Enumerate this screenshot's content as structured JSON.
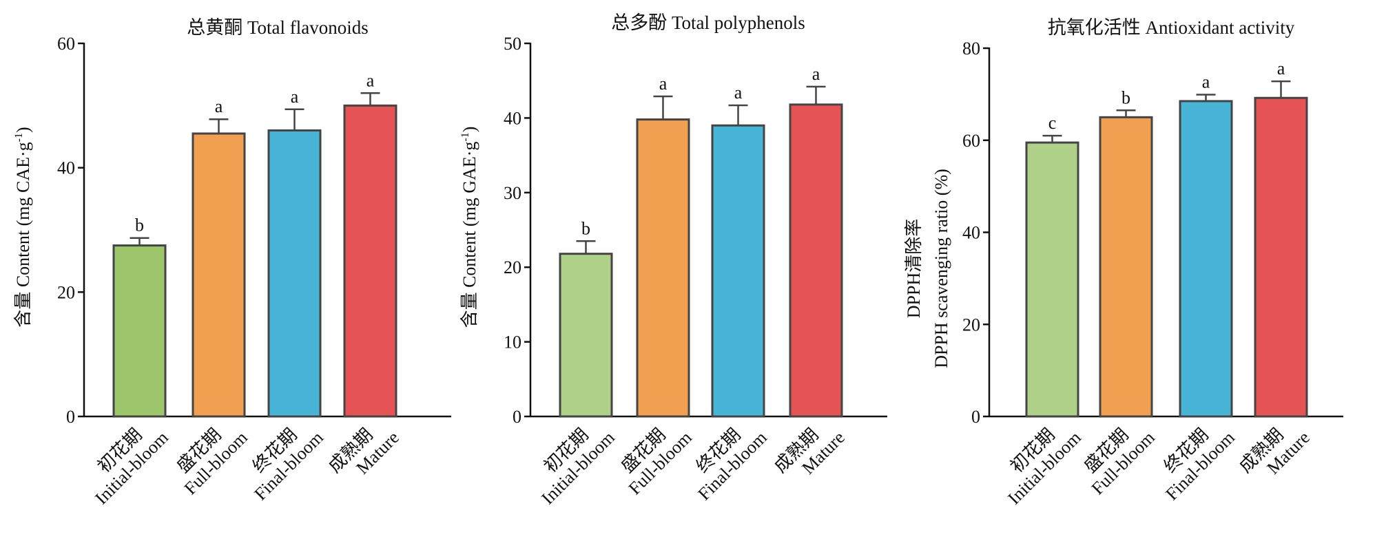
{
  "chart_data": [
    {
      "type": "bar",
      "title": "总黄酮 Total flavonoids",
      "ylabel": "含量 Content (mg CAE·g",
      "ylabel_sup": "-1",
      "ylabel_close": ")",
      "ylim": [
        0,
        60
      ],
      "yticks": [
        0,
        20,
        40,
        60
      ],
      "categories": [
        {
          "cn": "初花期",
          "en": "Initial-bloom"
        },
        {
          "cn": "盛花期",
          "en": "Full-bloom"
        },
        {
          "cn": "终花期",
          "en": "Final-bloom"
        },
        {
          "cn": "成熟期",
          "en": "Mature"
        }
      ],
      "values": [
        27.5,
        45.5,
        46.0,
        50.0
      ],
      "errors": [
        1.2,
        2.3,
        3.4,
        2.0
      ],
      "significance": [
        "b",
        "a",
        "a",
        "a"
      ],
      "colors": [
        "#9dc56a",
        "#f0a050",
        "#48b4d8",
        "#e65354"
      ]
    },
    {
      "type": "bar",
      "title": "总多酚 Total  polyphenols",
      "ylabel": "含量 Content (mg GAE·g",
      "ylabel_sup": "-1",
      "ylabel_close": ")",
      "ylim": [
        0,
        50
      ],
      "yticks": [
        0,
        10,
        20,
        30,
        40,
        50
      ],
      "categories": [
        {
          "cn": "初花期",
          "en": "Initial-bloom"
        },
        {
          "cn": "盛花期",
          "en": "Full-bloom"
        },
        {
          "cn": "终花期",
          "en": "Final-bloom"
        },
        {
          "cn": "成熟期",
          "en": "Mature"
        }
      ],
      "values": [
        21.8,
        39.8,
        39.0,
        41.8
      ],
      "errors": [
        1.7,
        3.1,
        2.7,
        2.4
      ],
      "significance": [
        "b",
        "a",
        "a",
        "a"
      ],
      "colors": [
        "#afd089",
        "#f0a050",
        "#48b4d8",
        "#e65354"
      ]
    },
    {
      "type": "bar",
      "title": "抗氧化活性 Antioxidant activity",
      "ylabel_line1": "DPPH清除率",
      "ylabel_line2": "DPPH scavenging ratio (%)",
      "ylim": [
        0,
        80
      ],
      "yticks": [
        0,
        20,
        40,
        60,
        80
      ],
      "categories": [
        {
          "cn": "初花期",
          "en": "Initial-bloom"
        },
        {
          "cn": "盛花期",
          "en": "Full-bloom"
        },
        {
          "cn": "终花期",
          "en": "Final-bloom"
        },
        {
          "cn": "成熟期",
          "en": "Mature"
        }
      ],
      "values": [
        59.5,
        65.0,
        68.5,
        69.2
      ],
      "errors": [
        1.5,
        1.5,
        1.4,
        3.6
      ],
      "significance": [
        "c",
        "b",
        "a",
        "a"
      ],
      "colors": [
        "#afd089",
        "#f0a050",
        "#48b4d8",
        "#e65354"
      ]
    }
  ]
}
